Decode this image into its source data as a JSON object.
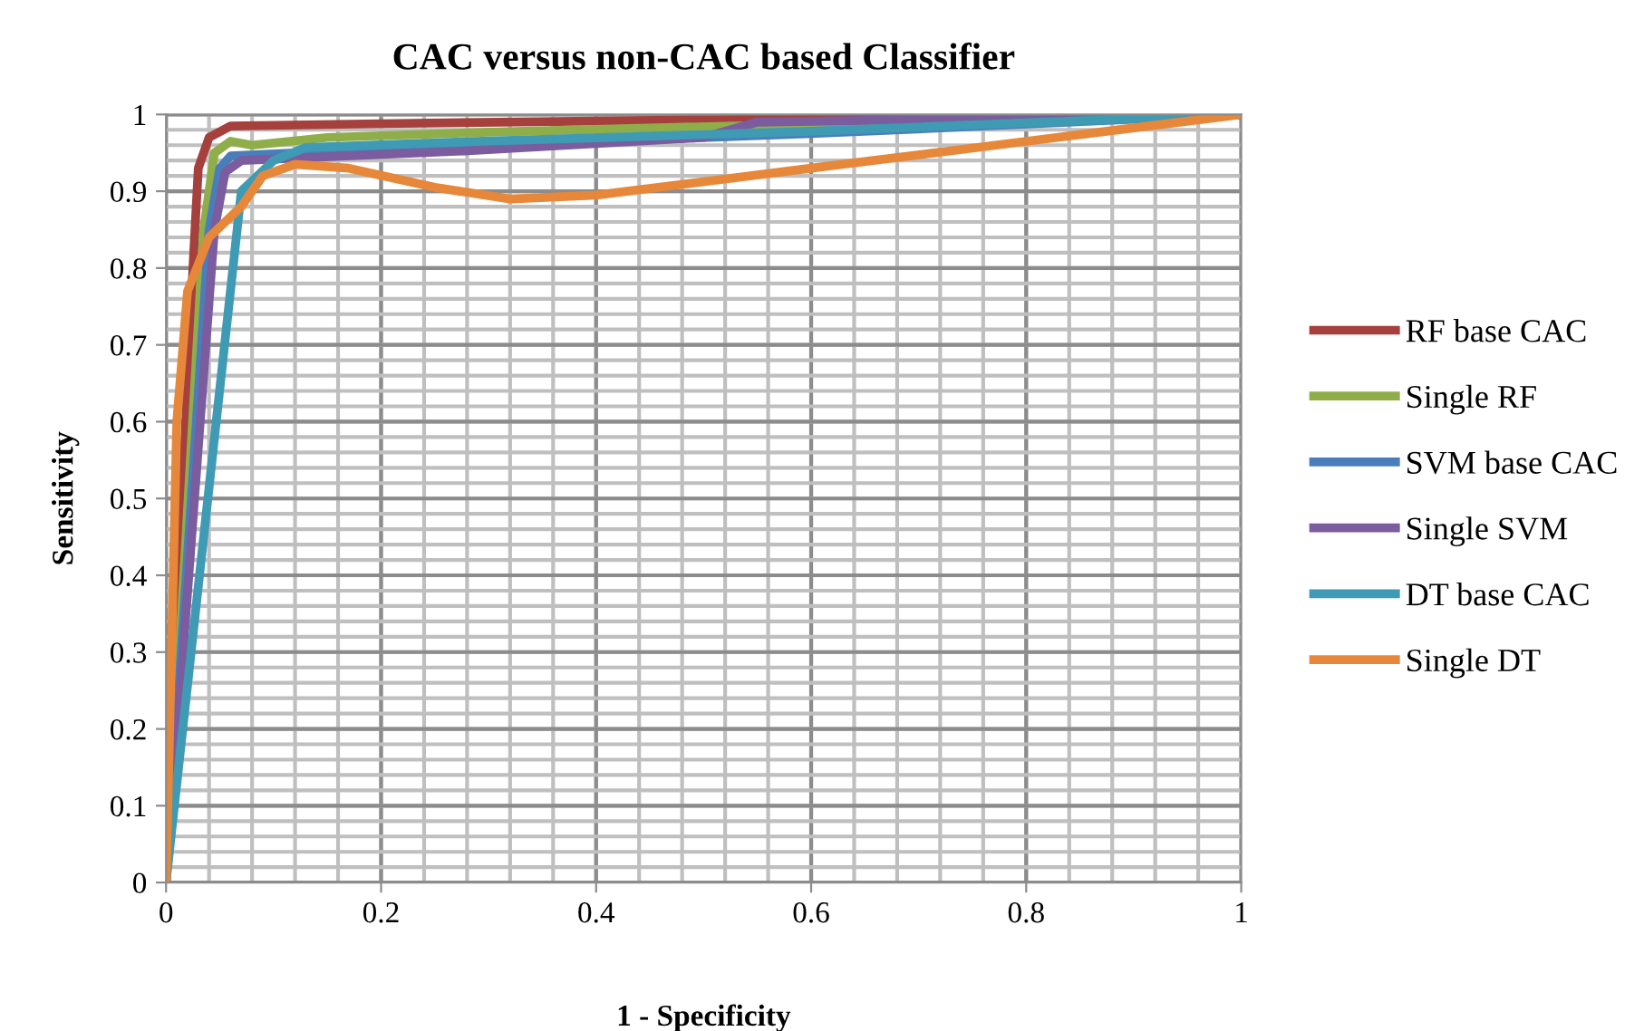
{
  "chart_data": {
    "type": "line",
    "title": "CAC versus non-CAC based Classifier",
    "xlabel": "1 - Specificity",
    "ylabel": "Sensitivity",
    "xlim": [
      0,
      1
    ],
    "ylim": [
      0,
      1
    ],
    "xticks": [
      0,
      0.2,
      0.4,
      0.6,
      0.8,
      1
    ],
    "yticks": [
      0,
      0.1,
      0.2,
      0.3,
      0.4,
      0.5,
      0.6,
      0.7,
      0.8,
      0.9,
      1
    ],
    "grid": true,
    "legend": "right",
    "marker": "none",
    "line_style": "solid",
    "series": [
      {
        "name": "RF base CAC",
        "color": "#a6403d",
        "x": [
          0,
          0.015,
          0.025,
          0.03,
          0.04,
          0.06,
          0.2,
          0.5,
          1
        ],
        "values": [
          0,
          0.5,
          0.8,
          0.93,
          0.97,
          0.985,
          0.988,
          0.993,
          1
        ]
      },
      {
        "name": "Single RF",
        "color": "#8fae4a",
        "x": [
          0,
          0.035,
          0.045,
          0.06,
          0.08,
          0.15,
          0.3,
          0.53,
          1
        ],
        "values": [
          0,
          0.85,
          0.95,
          0.965,
          0.96,
          0.97,
          0.977,
          0.985,
          1
        ]
      },
      {
        "name": "SVM base CAC",
        "color": "#4a7ebb",
        "x": [
          0,
          0.04,
          0.05,
          0.06,
          0.2,
          0.6,
          1
        ],
        "values": [
          0,
          0.85,
          0.93,
          0.946,
          0.955,
          0.975,
          1
        ]
      },
      {
        "name": "Single SVM",
        "color": "#7b5c9e",
        "x": [
          0,
          0.045,
          0.055,
          0.07,
          0.27,
          0.5,
          0.55,
          1
        ],
        "values": [
          0,
          0.85,
          0.925,
          0.94,
          0.952,
          0.97,
          0.99,
          1
        ]
      },
      {
        "name": "DT base CAC",
        "color": "#3f9bb4",
        "x": [
          0,
          0.07,
          0.1,
          0.13,
          0.27,
          0.6,
          1
        ],
        "values": [
          0,
          0.9,
          0.94,
          0.957,
          0.964,
          0.978,
          1
        ]
      },
      {
        "name": "Single DT",
        "color": "#e6873a",
        "x": [
          0,
          0.01,
          0.02,
          0.04,
          0.07,
          0.09,
          0.12,
          0.17,
          0.25,
          0.32,
          0.4,
          0.6,
          0.8,
          1
        ],
        "values": [
          0,
          0.6,
          0.77,
          0.84,
          0.88,
          0.92,
          0.935,
          0.93,
          0.905,
          0.89,
          0.895,
          0.93,
          0.965,
          1
        ]
      }
    ]
  }
}
